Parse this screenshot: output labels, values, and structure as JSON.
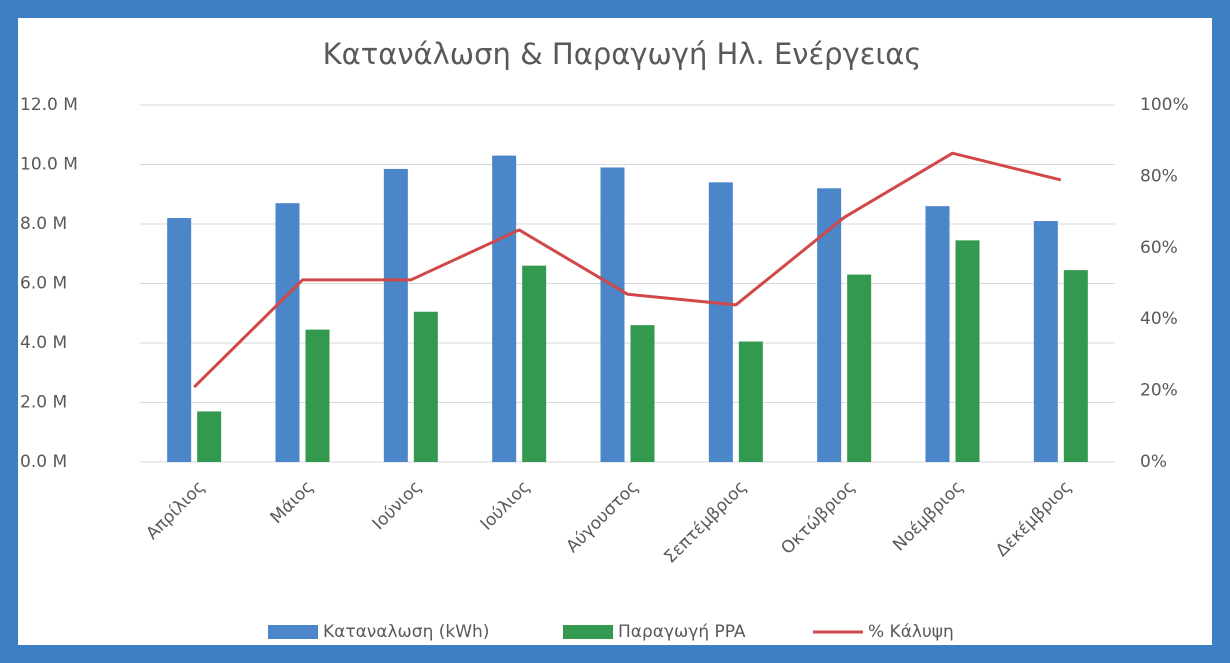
{
  "chart_data": {
    "type": "bar_line",
    "title": "Κατανάλωση & Παραγωγή Ηλ. Ενέργειας",
    "categories": [
      "Απρίλιος",
      "Μάιος",
      "Ιούνιος",
      "Ιούλιος",
      "Αύγουστος",
      "Σεπτέμβριος",
      "Οκτώβριος",
      "Νοέμβριος",
      "Δεκέμβριος"
    ],
    "series": [
      {
        "name": "Καταναλωση (kWh)",
        "type": "bar",
        "color": "#4a86c8",
        "values": [
          8200000,
          8700000,
          9850000,
          10300000,
          9900000,
          9400000,
          9200000,
          8600000,
          8100000
        ]
      },
      {
        "name": "Παραγωγή PPA",
        "type": "bar",
        "color": "#33994f",
        "values": [
          1700000,
          4450000,
          5050000,
          6600000,
          4600000,
          4050000,
          6300000,
          7450000,
          6450000
        ]
      },
      {
        "name": "% Κάλυψη",
        "type": "line",
        "axis": "y2",
        "color": "#d04848",
        "values": [
          21,
          51,
          51,
          65,
          47,
          44,
          68.5,
          86.5,
          79
        ]
      }
    ],
    "ylim": [
      0,
      12000000
    ],
    "yticks": [
      {
        "value": 0,
        "label": "0.0 M"
      },
      {
        "value": 2000000,
        "label": "2.0 M"
      },
      {
        "value": 4000000,
        "label": "4.0 M"
      },
      {
        "value": 6000000,
        "label": "6.0 M"
      },
      {
        "value": 8000000,
        "label": "8.0 M"
      },
      {
        "value": 10000000,
        "label": "10.0 M"
      },
      {
        "value": 12000000,
        "label": "12.0 M"
      }
    ],
    "y2lim": [
      0,
      100
    ],
    "y2ticks": [
      {
        "value": 0,
        "label": "0%"
      },
      {
        "value": 20,
        "label": "20%"
      },
      {
        "value": 40,
        "label": "40%"
      },
      {
        "value": 60,
        "label": "60%"
      },
      {
        "value": 80,
        "label": "80%"
      },
      {
        "value": 100,
        "label": "100%"
      }
    ],
    "grid": true,
    "legend": "bottom"
  }
}
